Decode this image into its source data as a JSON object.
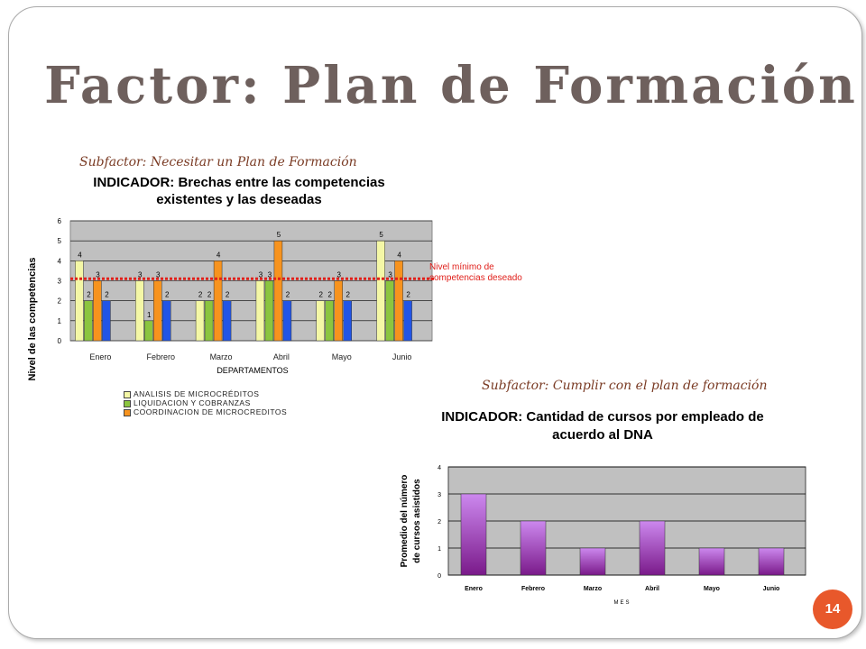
{
  "title": "Factor: Plan de Formación",
  "page_number": "14",
  "subfactor1": "Subfactor: Necesitar un Plan de Formación",
  "subfactor2": "Subfactor: Cumplir con el plan de formación",
  "chart1_title_line1": "INDICADOR: Brechas entre las competencias",
  "chart1_title_line2": "existentes y las deseadas",
  "chart1_ylabel": "Nivel de las competencias",
  "chart1_xlabel": "DEPARTAMENTOS",
  "chart1_refnote_line1": "Nivel mínimo de",
  "chart1_refnote_line2": "competencias deseado",
  "chart2_title_line1": "INDICADOR: Cantidad de cursos por empleado de",
  "chart2_title_line2": "acuerdo al DNA",
  "chart2_ylabel_line1": "Promedio del número",
  "chart2_ylabel_line2": "de cursos asistidos",
  "chart2_xlabel": "MES",
  "legend": [
    "ANALISIS DE MICROCRÉDITOS",
    "LIQUIDACION Y COBRANZAS",
    "COORDINACION DE MICROCREDITOS"
  ],
  "colors": {
    "s1": "#f4f7a6",
    "s2": "#8bc53f",
    "s3": "#f7931e",
    "s4": "#2255e6",
    "ref": "#e0201b",
    "c2bar_top": "#cc88ee",
    "c2bar_bottom": "#7a1a8a",
    "accent": "#e8582b"
  },
  "chart_data": [
    {
      "type": "bar",
      "categories": [
        "Enero",
        "Febrero",
        "Marzo",
        "Abril",
        "Mayo",
        "Junio"
      ],
      "series": [
        {
          "name": "ANALISIS DE MICROCRÉDITOS",
          "values": [
            4,
            3,
            2,
            3,
            2,
            5
          ]
        },
        {
          "name": "LIQUIDACION Y COBRANZAS",
          "values": [
            2,
            1,
            2,
            3,
            2,
            3
          ]
        },
        {
          "name": "COORDINACION DE MICROCREDITOS",
          "values": [
            3,
            3,
            4,
            5,
            3,
            4
          ]
        },
        {
          "values": [
            2,
            2,
            2,
            2,
            2,
            2
          ]
        }
      ],
      "reference_line": 3.1,
      "ylim": [
        0,
        6
      ],
      "yticks": [
        0,
        1,
        2,
        3,
        4,
        5,
        6
      ],
      "grid": true
    },
    {
      "type": "bar",
      "categories": [
        "Enero",
        "Febrero",
        "Marzo",
        "Abril",
        "Mayo",
        "Junio"
      ],
      "values": [
        3,
        2,
        1,
        2,
        1,
        1
      ],
      "ylim": [
        0,
        4
      ],
      "yticks": [
        0,
        1,
        2,
        3,
        4
      ],
      "grid": true
    }
  ]
}
